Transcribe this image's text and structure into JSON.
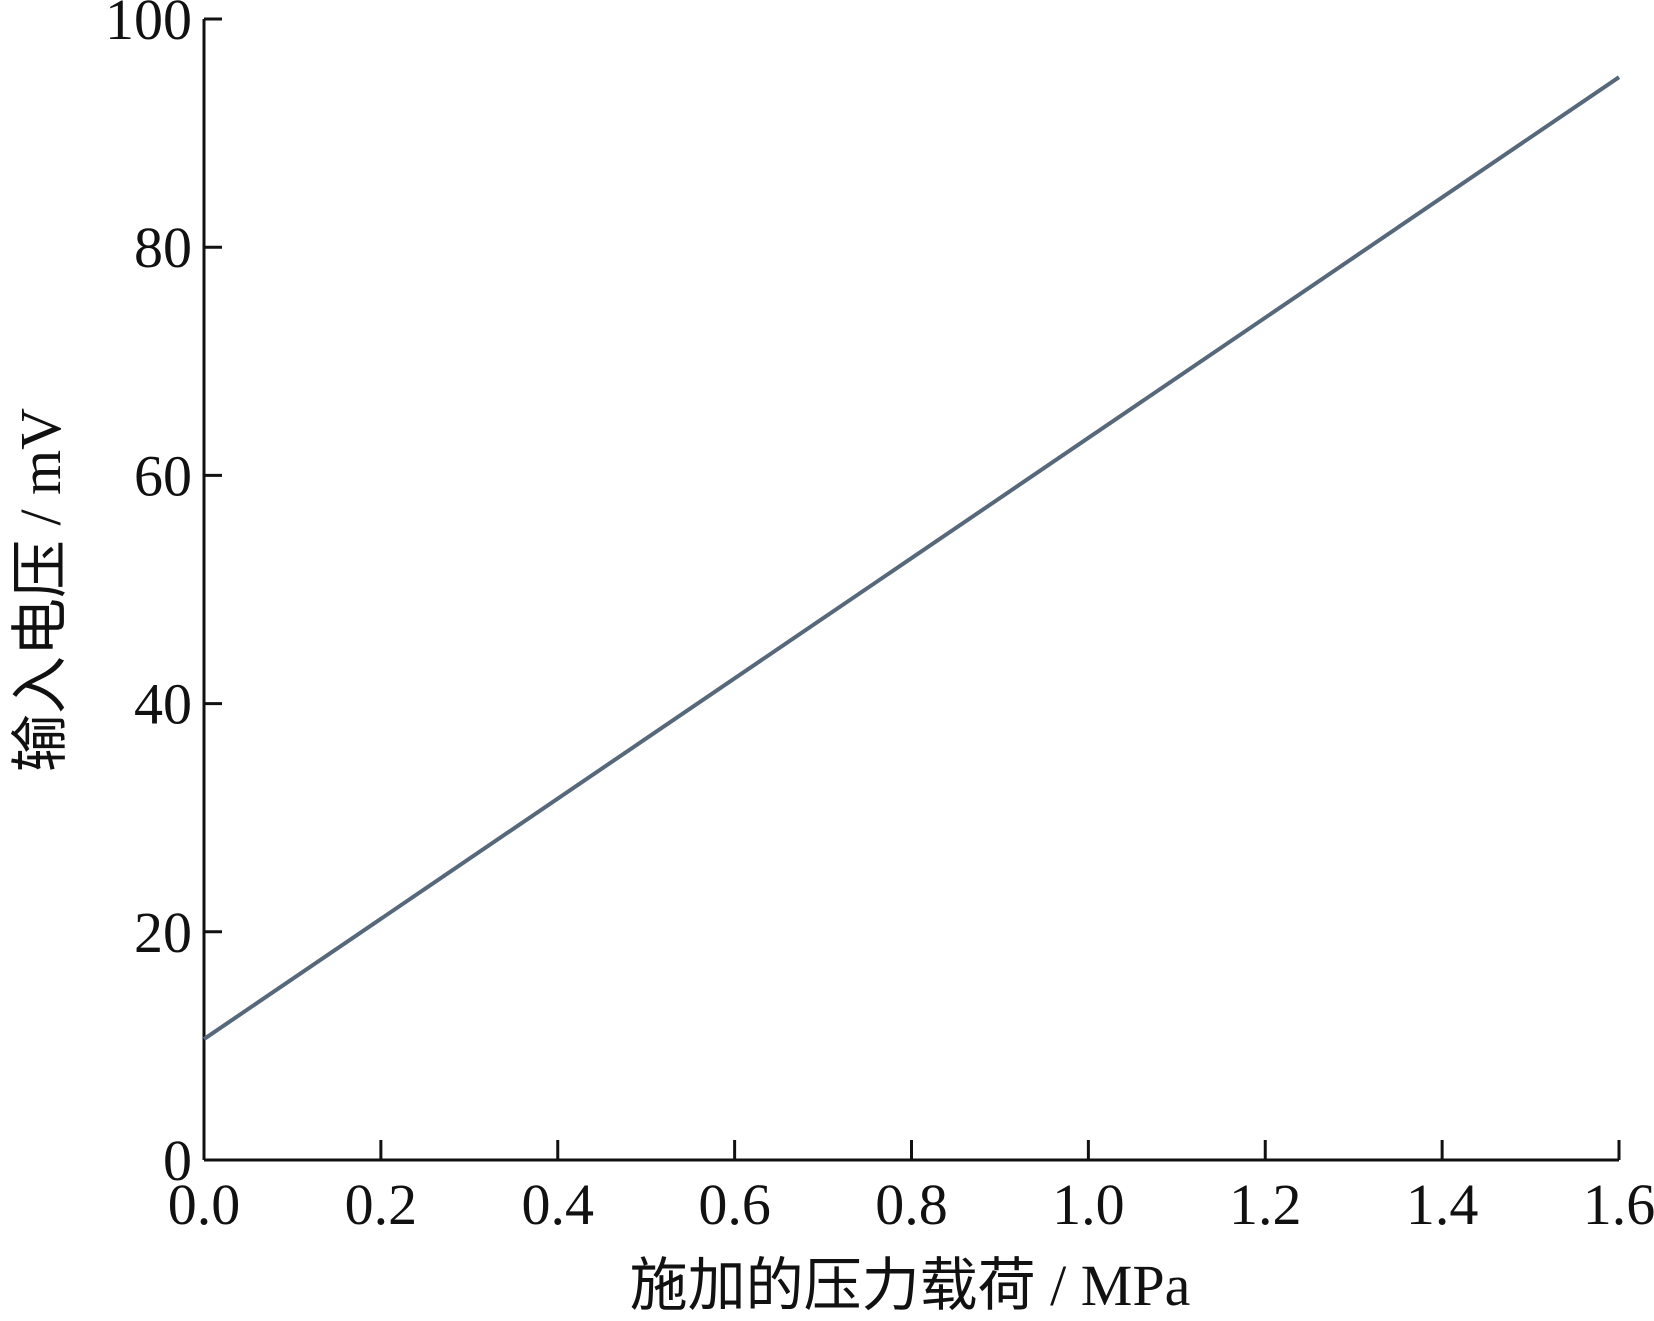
{
  "chart_data": {
    "type": "line",
    "x_label": "施加的压力载荷 / MPa",
    "y_label": "输入电压 / mV",
    "x": [
      0,
      1.6
    ],
    "series": [
      {
        "color": "#56687a",
        "values": [
          10.6,
          94.9
        ]
      }
    ],
    "xlim": [
      0,
      1.6
    ],
    "xticks": [
      {
        "value": 0,
        "label": "0.0"
      },
      0.2,
      0.4,
      0.6,
      0.8,
      {
        "value": 1,
        "label": "1.0"
      },
      1.2,
      1.4,
      1.6
    ],
    "ylim": [
      0,
      100
    ],
    "yticks": [
      0,
      20,
      40,
      60,
      80,
      100
    ],
    "grid": false
  }
}
